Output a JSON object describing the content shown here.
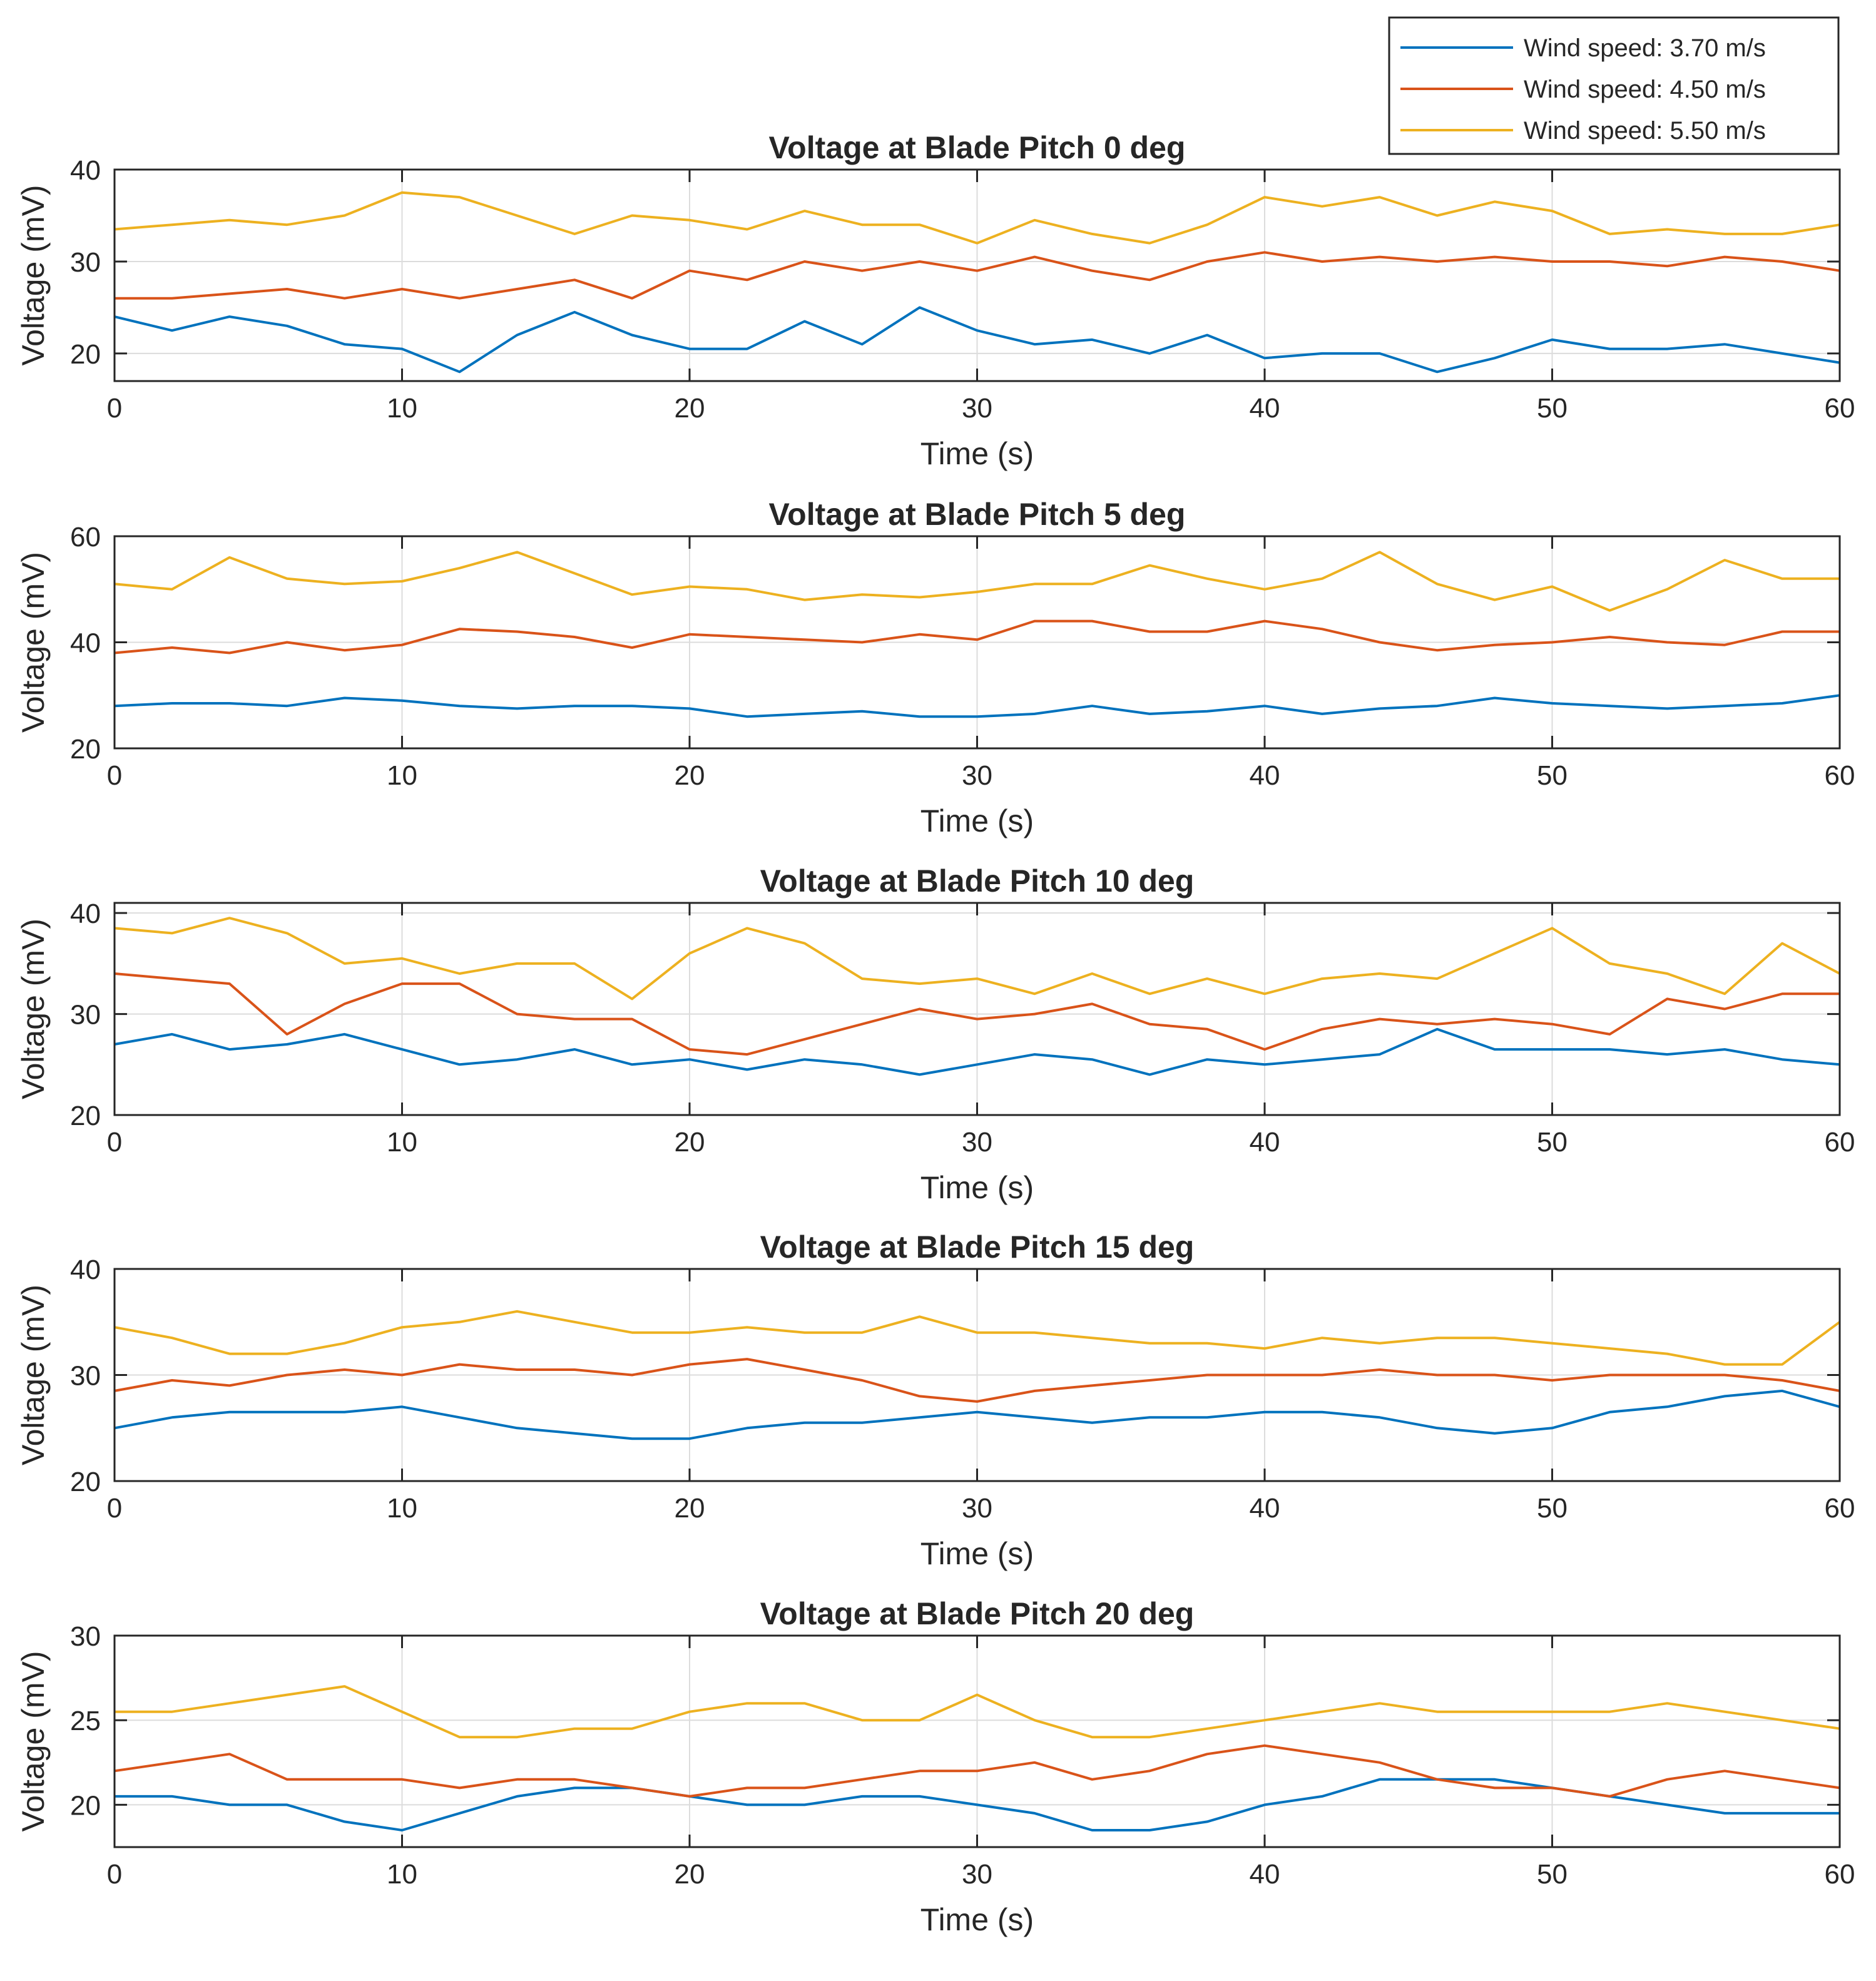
{
  "chart_data": [
    {
      "type": "line",
      "title": "Voltage at Blade Pitch 0 deg",
      "xlabel": "Time (s)",
      "ylabel": "Voltage (mV)",
      "xlim": [
        0,
        60
      ],
      "ylim": [
        17,
        40
      ],
      "xticks": [
        0,
        10,
        20,
        30,
        40,
        50,
        60
      ],
      "yticks": [
        20,
        30,
        40
      ],
      "grid": true,
      "series": [
        {
          "name": "Wind speed: 3.70 m/s",
          "color": "#0072BD",
          "x": [
            0,
            2,
            4,
            6,
            8,
            10,
            12,
            14,
            16,
            18,
            20,
            22,
            24,
            26,
            28,
            30,
            32,
            34,
            36,
            38,
            40,
            42,
            44,
            46,
            48,
            50,
            52,
            54,
            56,
            58,
            60
          ],
          "y": [
            24,
            22.5,
            24,
            23,
            21,
            20.5,
            18,
            22,
            24.5,
            22,
            20.5,
            20.5,
            23.5,
            21,
            25,
            22.5,
            21,
            21.5,
            20,
            22,
            19.5,
            20,
            20,
            18,
            19.5,
            21.5,
            20.5,
            20.5,
            21,
            20,
            19
          ]
        },
        {
          "name": "Wind speed: 4.50 m/s",
          "color": "#D95319",
          "x": [
            0,
            2,
            4,
            6,
            8,
            10,
            12,
            14,
            16,
            18,
            20,
            22,
            24,
            26,
            28,
            30,
            32,
            34,
            36,
            38,
            40,
            42,
            44,
            46,
            48,
            50,
            52,
            54,
            56,
            58,
            60
          ],
          "y": [
            26,
            26,
            26.5,
            27,
            26,
            27,
            26,
            27,
            28,
            26,
            29,
            28,
            30,
            29,
            30,
            29,
            30.5,
            29,
            28,
            30,
            31,
            30,
            30.5,
            30,
            30.5,
            30,
            30,
            29.5,
            30.5,
            30,
            29
          ]
        },
        {
          "name": "Wind speed: 5.50 m/s",
          "color": "#EDB120",
          "x": [
            0,
            2,
            4,
            6,
            8,
            10,
            12,
            14,
            16,
            18,
            20,
            22,
            24,
            26,
            28,
            30,
            32,
            34,
            36,
            38,
            40,
            42,
            44,
            46,
            48,
            50,
            52,
            54,
            56,
            58,
            60
          ],
          "y": [
            33.5,
            34,
            34.5,
            34,
            35,
            37.5,
            37,
            35,
            33,
            35,
            34.5,
            33.5,
            35.5,
            34,
            34,
            32,
            34.5,
            33,
            32,
            34,
            37,
            36,
            37,
            35,
            36.5,
            35.5,
            33,
            33.5,
            33,
            33,
            34
          ]
        }
      ]
    },
    {
      "type": "line",
      "title": "Voltage at Blade Pitch 5 deg",
      "xlabel": "Time (s)",
      "ylabel": "Voltage (mV)",
      "xlim": [
        0,
        60
      ],
      "ylim": [
        20,
        60
      ],
      "xticks": [
        0,
        10,
        20,
        30,
        40,
        50,
        60
      ],
      "yticks": [
        20,
        40,
        60
      ],
      "grid": true,
      "series": [
        {
          "name": "Wind speed: 3.70 m/s",
          "color": "#0072BD",
          "x": [
            0,
            2,
            4,
            6,
            8,
            10,
            12,
            14,
            16,
            18,
            20,
            22,
            24,
            26,
            28,
            30,
            32,
            34,
            36,
            38,
            40,
            42,
            44,
            46,
            48,
            50,
            52,
            54,
            56,
            58,
            60
          ],
          "y": [
            28,
            28.5,
            28.5,
            28,
            29.5,
            29,
            28,
            27.5,
            28,
            28,
            27.5,
            26,
            26.5,
            27,
            26,
            26,
            26.5,
            28,
            26.5,
            27,
            28,
            26.5,
            27.5,
            28,
            29.5,
            28.5,
            28,
            27.5,
            28,
            28.5,
            30
          ]
        },
        {
          "name": "Wind speed: 4.50 m/s",
          "color": "#D95319",
          "x": [
            0,
            2,
            4,
            6,
            8,
            10,
            12,
            14,
            16,
            18,
            20,
            22,
            24,
            26,
            28,
            30,
            32,
            34,
            36,
            38,
            40,
            42,
            44,
            46,
            48,
            50,
            52,
            54,
            56,
            58,
            60
          ],
          "y": [
            38,
            39,
            38,
            40,
            38.5,
            39.5,
            42.5,
            42,
            41,
            39,
            41.5,
            41,
            40.5,
            40,
            41.5,
            40.5,
            44,
            44,
            42,
            42,
            44,
            42.5,
            40,
            38.5,
            39.5,
            40,
            41,
            40,
            39.5,
            42,
            42
          ]
        },
        {
          "name": "Wind speed: 5.50 m/s",
          "color": "#EDB120",
          "x": [
            0,
            2,
            4,
            6,
            8,
            10,
            12,
            14,
            16,
            18,
            20,
            22,
            24,
            26,
            28,
            30,
            32,
            34,
            36,
            38,
            40,
            42,
            44,
            46,
            48,
            50,
            52,
            54,
            56,
            58,
            60
          ],
          "y": [
            51,
            50,
            56,
            52,
            51,
            51.5,
            54,
            57,
            53,
            49,
            50.5,
            50,
            48,
            49,
            48.5,
            49.5,
            51,
            51,
            54.5,
            52,
            50,
            52,
            57,
            51,
            48,
            50.5,
            46,
            50,
            55.5,
            52,
            52
          ]
        }
      ]
    },
    {
      "type": "line",
      "title": "Voltage at Blade Pitch 10 deg",
      "xlabel": "Time (s)",
      "ylabel": "Voltage (mV)",
      "xlim": [
        0,
        60
      ],
      "ylim": [
        20,
        41
      ],
      "xticks": [
        0,
        10,
        20,
        30,
        40,
        50,
        60
      ],
      "yticks": [
        20,
        30,
        40
      ],
      "grid": true,
      "series": [
        {
          "name": "Wind speed: 3.70 m/s",
          "color": "#0072BD",
          "x": [
            0,
            2,
            4,
            6,
            8,
            10,
            12,
            14,
            16,
            18,
            20,
            22,
            24,
            26,
            28,
            30,
            32,
            34,
            36,
            38,
            40,
            42,
            44,
            46,
            48,
            50,
            52,
            54,
            56,
            58,
            60
          ],
          "y": [
            27,
            28,
            26.5,
            27,
            28,
            26.5,
            25,
            25.5,
            26.5,
            25,
            25.5,
            24.5,
            25.5,
            25,
            24,
            25,
            26,
            25.5,
            24,
            25.5,
            25,
            25.5,
            26,
            28.5,
            26.5,
            26.5,
            26.5,
            26,
            26.5,
            25.5,
            25
          ]
        },
        {
          "name": "Wind speed: 4.50 m/s",
          "color": "#D95319",
          "x": [
            0,
            2,
            4,
            6,
            8,
            10,
            12,
            14,
            16,
            18,
            20,
            22,
            24,
            26,
            28,
            30,
            32,
            34,
            36,
            38,
            40,
            42,
            44,
            46,
            48,
            50,
            52,
            54,
            56,
            58,
            60
          ],
          "y": [
            34,
            33.5,
            33,
            28,
            31,
            33,
            33,
            30,
            29.5,
            29.5,
            26.5,
            26,
            27.5,
            29,
            30.5,
            29.5,
            30,
            31,
            29,
            28.5,
            26.5,
            28.5,
            29.5,
            29,
            29.5,
            29,
            28,
            31.5,
            30.5,
            32,
            32
          ]
        },
        {
          "name": "Wind speed: 5.50 m/s",
          "color": "#EDB120",
          "x": [
            0,
            2,
            4,
            6,
            8,
            10,
            12,
            14,
            16,
            18,
            20,
            22,
            24,
            26,
            28,
            30,
            32,
            34,
            36,
            38,
            40,
            42,
            44,
            46,
            48,
            50,
            52,
            54,
            56,
            58,
            60
          ],
          "y": [
            38.5,
            38,
            39.5,
            38,
            35,
            35.5,
            34,
            35,
            35,
            31.5,
            36,
            38.5,
            37,
            33.5,
            33,
            33.5,
            32,
            34,
            32,
            33.5,
            32,
            33.5,
            34,
            33.5,
            36,
            38.5,
            35,
            34,
            32,
            37,
            34
          ]
        }
      ]
    },
    {
      "type": "line",
      "title": "Voltage at Blade Pitch 15 deg",
      "xlabel": "Time (s)",
      "ylabel": "Voltage (mV)",
      "xlim": [
        0,
        60
      ],
      "ylim": [
        20,
        40
      ],
      "xticks": [
        0,
        10,
        20,
        30,
        40,
        50,
        60
      ],
      "yticks": [
        20,
        30,
        40
      ],
      "grid": true,
      "series": [
        {
          "name": "Wind speed: 3.70 m/s",
          "color": "#0072BD",
          "x": [
            0,
            2,
            4,
            6,
            8,
            10,
            12,
            14,
            16,
            18,
            20,
            22,
            24,
            26,
            28,
            30,
            32,
            34,
            36,
            38,
            40,
            42,
            44,
            46,
            48,
            50,
            52,
            54,
            56,
            58,
            60
          ],
          "y": [
            25,
            26,
            26.5,
            26.5,
            26.5,
            27,
            26,
            25,
            24.5,
            24,
            24,
            25,
            25.5,
            25.5,
            26,
            26.5,
            26,
            25.5,
            26,
            26,
            26.5,
            26.5,
            26,
            25,
            24.5,
            25,
            26.5,
            27,
            28,
            28.5,
            27
          ]
        },
        {
          "name": "Wind speed: 4.50 m/s",
          "color": "#D95319",
          "x": [
            0,
            2,
            4,
            6,
            8,
            10,
            12,
            14,
            16,
            18,
            20,
            22,
            24,
            26,
            28,
            30,
            32,
            34,
            36,
            38,
            40,
            42,
            44,
            46,
            48,
            50,
            52,
            54,
            56,
            58,
            60
          ],
          "y": [
            28.5,
            29.5,
            29,
            30,
            30.5,
            30,
            31,
            30.5,
            30.5,
            30,
            31,
            31.5,
            30.5,
            29.5,
            28,
            27.5,
            28.5,
            29,
            29.5,
            30,
            30,
            30,
            30.5,
            30,
            30,
            29.5,
            30,
            30,
            30,
            29.5,
            28.5
          ]
        },
        {
          "name": "Wind speed: 5.50 m/s",
          "color": "#EDB120",
          "x": [
            0,
            2,
            4,
            6,
            8,
            10,
            12,
            14,
            16,
            18,
            20,
            22,
            24,
            26,
            28,
            30,
            32,
            34,
            36,
            38,
            40,
            42,
            44,
            46,
            48,
            50,
            52,
            54,
            56,
            58,
            60
          ],
          "y": [
            34.5,
            33.5,
            32,
            32,
            33,
            34.5,
            35,
            36,
            35,
            34,
            34,
            34.5,
            34,
            34,
            35.5,
            34,
            34,
            33.5,
            33,
            33,
            32.5,
            33.5,
            33,
            33.5,
            33.5,
            33,
            32.5,
            32,
            31,
            31,
            35
          ]
        }
      ]
    },
    {
      "type": "line",
      "title": "Voltage at Blade Pitch 20 deg",
      "xlabel": "Time (s)",
      "ylabel": "Voltage (mV)",
      "xlim": [
        0,
        60
      ],
      "ylim": [
        17.5,
        30
      ],
      "xticks": [
        0,
        10,
        20,
        30,
        40,
        50,
        60
      ],
      "yticks": [
        20,
        25,
        30
      ],
      "grid": true,
      "series": [
        {
          "name": "Wind speed: 3.70 m/s",
          "color": "#0072BD",
          "x": [
            0,
            2,
            4,
            6,
            8,
            10,
            12,
            14,
            16,
            18,
            20,
            22,
            24,
            26,
            28,
            30,
            32,
            34,
            36,
            38,
            40,
            42,
            44,
            46,
            48,
            50,
            52,
            54,
            56,
            58,
            60
          ],
          "y": [
            20.5,
            20.5,
            20,
            20,
            19,
            18.5,
            19.5,
            20.5,
            21,
            21,
            20.5,
            20,
            20,
            20.5,
            20.5,
            20,
            19.5,
            18.5,
            18.5,
            19,
            20,
            20.5,
            21.5,
            21.5,
            21.5,
            21,
            20.5,
            20,
            19.5,
            19.5,
            19.5
          ]
        },
        {
          "name": "Wind speed: 4.50 m/s",
          "color": "#D95319",
          "x": [
            0,
            2,
            4,
            6,
            8,
            10,
            12,
            14,
            16,
            18,
            20,
            22,
            24,
            26,
            28,
            30,
            32,
            34,
            36,
            38,
            40,
            42,
            44,
            46,
            48,
            50,
            52,
            54,
            56,
            58,
            60
          ],
          "y": [
            22,
            22.5,
            23,
            21.5,
            21.5,
            21.5,
            21,
            21.5,
            21.5,
            21,
            20.5,
            21,
            21,
            21.5,
            22,
            22,
            22.5,
            21.5,
            22,
            23,
            23.5,
            23,
            22.5,
            21.5,
            21,
            21,
            20.5,
            21.5,
            22,
            21.5,
            21
          ]
        },
        {
          "name": "Wind speed: 5.50 m/s",
          "color": "#EDB120",
          "x": [
            0,
            2,
            4,
            6,
            8,
            10,
            12,
            14,
            16,
            18,
            20,
            22,
            24,
            26,
            28,
            30,
            32,
            34,
            36,
            38,
            40,
            42,
            44,
            46,
            48,
            50,
            52,
            54,
            56,
            58,
            60
          ],
          "y": [
            25.5,
            25.5,
            26,
            26.5,
            27,
            25.5,
            24,
            24,
            24.5,
            24.5,
            25.5,
            26,
            26,
            25,
            25,
            26.5,
            25,
            24,
            24,
            24.5,
            25,
            25.5,
            26,
            25.5,
            25.5,
            25.5,
            25.5,
            26,
            25.5,
            25,
            24.5
          ]
        }
      ]
    }
  ]
}
